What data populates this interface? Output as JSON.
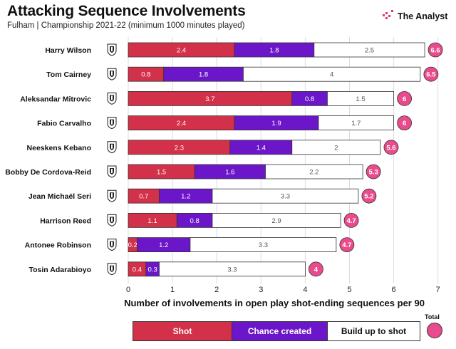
{
  "title": "Attacking Sequence Involvements",
  "subtitle": "Fulham | Championship 2021-22 (minimum 1000 minutes played)",
  "brand": {
    "name": "The Analyst",
    "icon": "analyst-logo-icon"
  },
  "legend": {
    "shot": "Shot",
    "chance": "Chance created",
    "build": "Build up to shot",
    "total": "Total"
  },
  "colors": {
    "shot": "#d3304a",
    "chance": "#6b17c9",
    "build": "#ffffff",
    "total": "#e94b8c"
  },
  "chart_data": {
    "type": "bar",
    "orientation": "horizontal",
    "stacked": true,
    "title": "Attacking Sequence Involvements",
    "subtitle": "Fulham | Championship 2021-22 (minimum 1000 minutes played)",
    "xlabel": "Number of involvements in open play shot-ending sequences per 90",
    "ylabel": "",
    "xlim": [
      0,
      7
    ],
    "xticks": [
      0,
      1,
      2,
      3,
      4,
      5,
      6,
      7
    ],
    "categories": [
      "Harry Wilson",
      "Tom Cairney",
      "Aleksandar Mitrovic",
      "Fabio Carvalho",
      "Neeskens Kebano",
      "Bobby De Cordova-Reid",
      "Jean Michaël Seri",
      "Harrison Reed",
      "Antonee Robinson",
      "Tosin Adarabioyo"
    ],
    "series": [
      {
        "name": "Shot",
        "values": [
          2.4,
          0.8,
          3.7,
          2.4,
          2.3,
          1.5,
          0.7,
          1.1,
          0.2,
          0.4
        ]
      },
      {
        "name": "Chance created",
        "values": [
          1.8,
          1.8,
          0.8,
          1.9,
          1.4,
          1.6,
          1.2,
          0.8,
          1.2,
          0.3
        ]
      },
      {
        "name": "Build up to shot",
        "values": [
          2.5,
          4,
          1.5,
          1.7,
          2,
          2.2,
          3.3,
          2.9,
          3.3,
          3.3
        ]
      }
    ],
    "totals": [
      6.6,
      6.5,
      6,
      6,
      5.6,
      5.3,
      5.2,
      4.7,
      4.7,
      4
    ]
  }
}
